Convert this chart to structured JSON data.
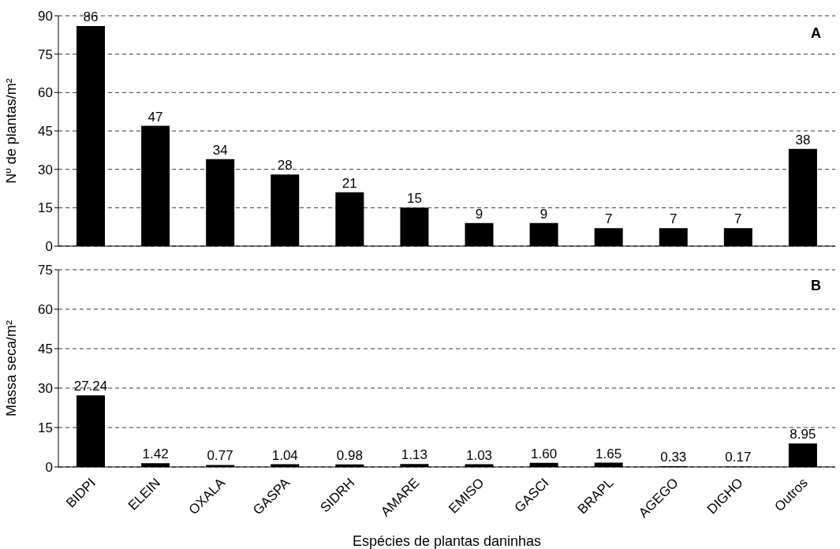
{
  "chart_data": [
    {
      "type": "bar",
      "ylabel": "Nº de plantas/m²",
      "categories": [
        null,
        null,
        null,
        null,
        null,
        null,
        null,
        null,
        null,
        null,
        null,
        null
      ],
      "values": [
        86,
        47,
        34,
        28,
        21,
        15,
        9,
        9,
        7,
        7,
        7,
        38
      ],
      "color": "#000000",
      "ylim": [
        0,
        90
      ],
      "yticks": [
        0,
        15,
        30,
        45,
        60,
        75,
        90
      ],
      "grid": "y",
      "data_labels": true,
      "tick_labels": "y",
      "annotations": [
        "A"
      ]
    },
    {
      "type": "bar",
      "ylabel": "Massa seca/m²",
      "xlabel": "Espécies de plantas daninhas",
      "categories": [
        "BIDPI",
        "ELEIN",
        "OXALA",
        "GASPA",
        "SIDRH",
        "AMARE",
        "EMISO",
        "GASCI",
        "BRAPL",
        "AGEGO",
        "DIGHO",
        "Outros"
      ],
      "values": [
        27.24,
        1.42,
        0.77,
        1.04,
        0.98,
        1.13,
        1.03,
        1.6,
        1.65,
        0.33,
        0.17,
        8.95
      ],
      "value_labels": [
        "27.24",
        "1.42",
        "0.77",
        "1.04",
        "0.98",
        "1.13",
        "1.03",
        "1.60",
        "1.65",
        "0.33",
        "0.17",
        "8.95"
      ],
      "color": "#000000",
      "ylim": [
        0,
        75
      ],
      "yticks": [
        0,
        15,
        30,
        45,
        60,
        75
      ],
      "grid": "y",
      "annotations": [
        "B"
      ]
    }
  ]
}
